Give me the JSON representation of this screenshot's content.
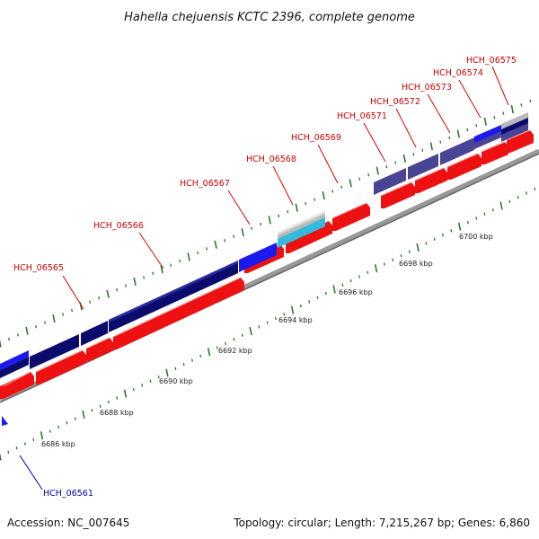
{
  "title": "Hahella chejuensis KCTC 2396, complete genome",
  "footer": {
    "accession": "Accession: NC_007645",
    "summary": "Topology: circular; Length: 7,215,267 bp; Genes: 6,860"
  },
  "colors": {
    "cog_dark": "#0b0b6e",
    "cog_blue": "#1a1aee",
    "cog_slate": "#4a4494",
    "cog_cyan": "#33bbdd",
    "cog_gray": "#b8b8b8",
    "cds": "#ee1111",
    "backbone": "#888888",
    "tick": "#2a7a2a",
    "label_forward": "#cc0000",
    "label_reverse": "#0000aa"
  },
  "scale_labels": [
    "6686 kbp",
    "6688 kbp",
    "6690 kbp",
    "6692 kbp",
    "6694 kbp",
    "6696 kbp",
    "6698 kbp",
    "6700 kbp"
  ],
  "genes": [
    {
      "name": "HCH_06561",
      "strand": "reverse"
    },
    {
      "name": "HCH_06565",
      "strand": "forward"
    },
    {
      "name": "HCH_06566",
      "strand": "forward"
    },
    {
      "name": "HCH_06567",
      "strand": "forward"
    },
    {
      "name": "HCH_06568",
      "strand": "forward"
    },
    {
      "name": "HCH_06569",
      "strand": "forward"
    },
    {
      "name": "HCH_06571",
      "strand": "forward"
    },
    {
      "name": "HCH_06572",
      "strand": "forward"
    },
    {
      "name": "HCH_06573",
      "strand": "forward"
    },
    {
      "name": "HCH_06574",
      "strand": "forward"
    },
    {
      "name": "HCH_06575",
      "strand": "forward"
    }
  ]
}
